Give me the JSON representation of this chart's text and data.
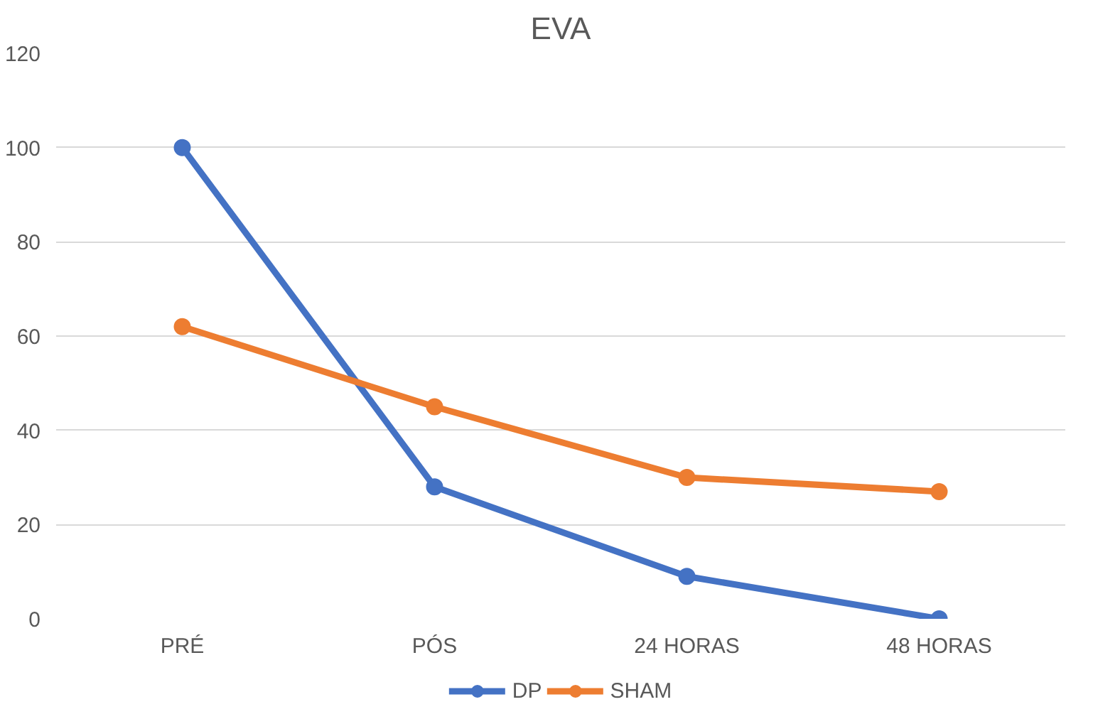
{
  "chart_data": {
    "type": "line",
    "title": "EVA",
    "categories": [
      "PRÉ",
      "PÓS",
      "24 HORAS",
      "48 HORAS"
    ],
    "series": [
      {
        "name": "DP",
        "color": "#4472c4",
        "values": [
          100,
          28,
          9,
          0
        ]
      },
      {
        "name": "SHAM",
        "color": "#ed7d31",
        "values": [
          62,
          45,
          30,
          27
        ]
      }
    ],
    "ylim": [
      0,
      120
    ],
    "yticks": [
      0,
      20,
      40,
      60,
      80,
      100,
      120
    ],
    "grid": "y",
    "legend": "bottom",
    "marker": "circle",
    "line_style": "solid"
  }
}
